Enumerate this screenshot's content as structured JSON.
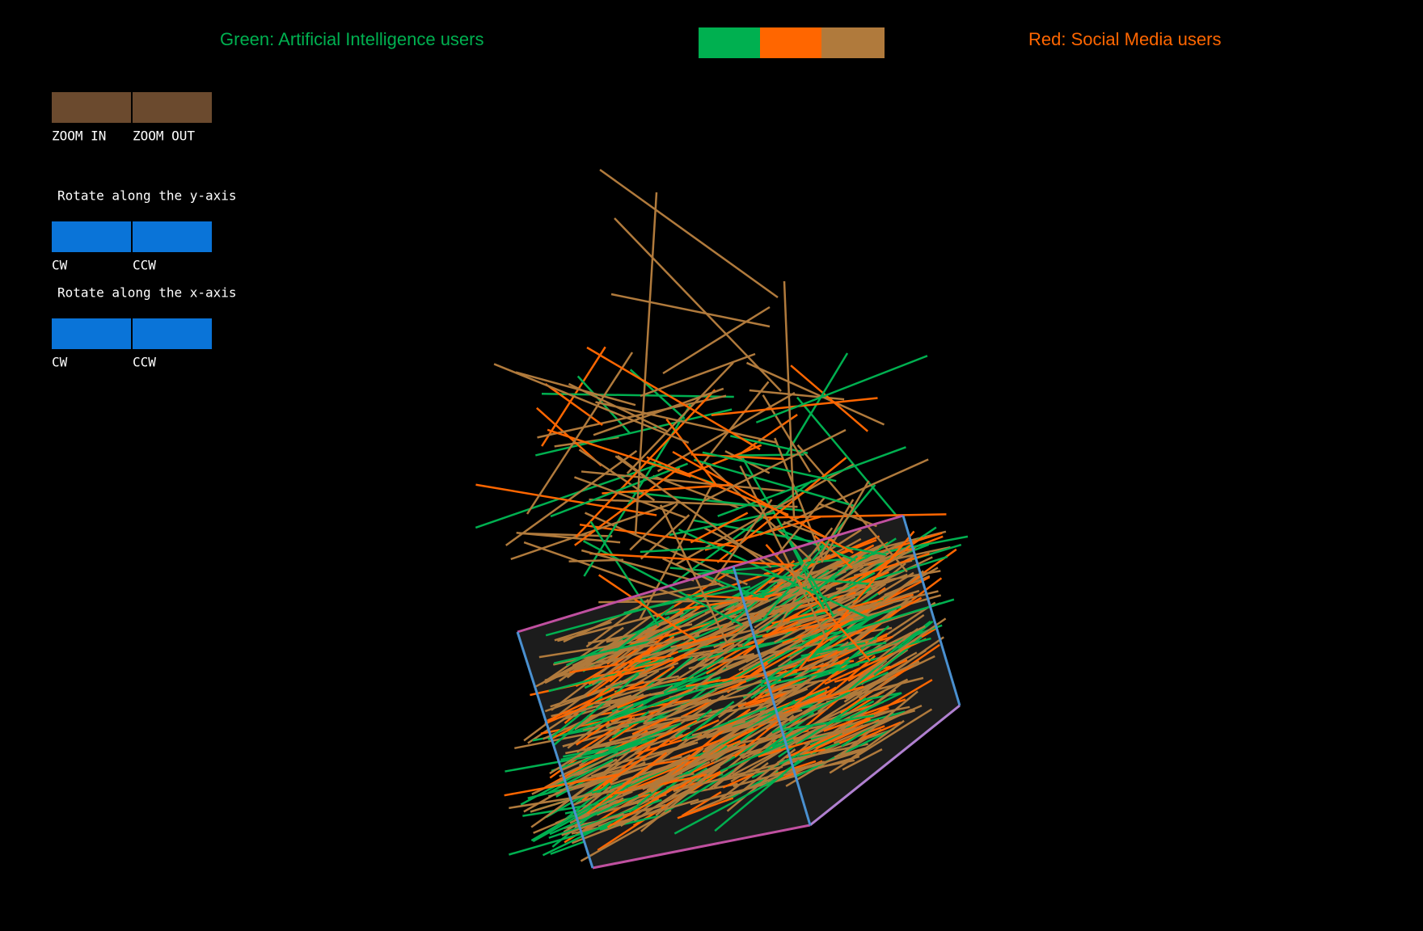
{
  "legend": {
    "green_label": "Green: Artificial Intelligence users",
    "red_label": "Red: Social Media users"
  },
  "controls": {
    "zoom": {
      "in": "ZOOM IN",
      "out": "ZOOM OUT"
    },
    "rotate_y": {
      "title": "Rotate along the y-axis",
      "cw": "CW",
      "ccw": "CCW"
    },
    "rotate_x": {
      "title": "Rotate along the x-axis",
      "cw": "CW",
      "ccw": "CCW"
    }
  }
}
